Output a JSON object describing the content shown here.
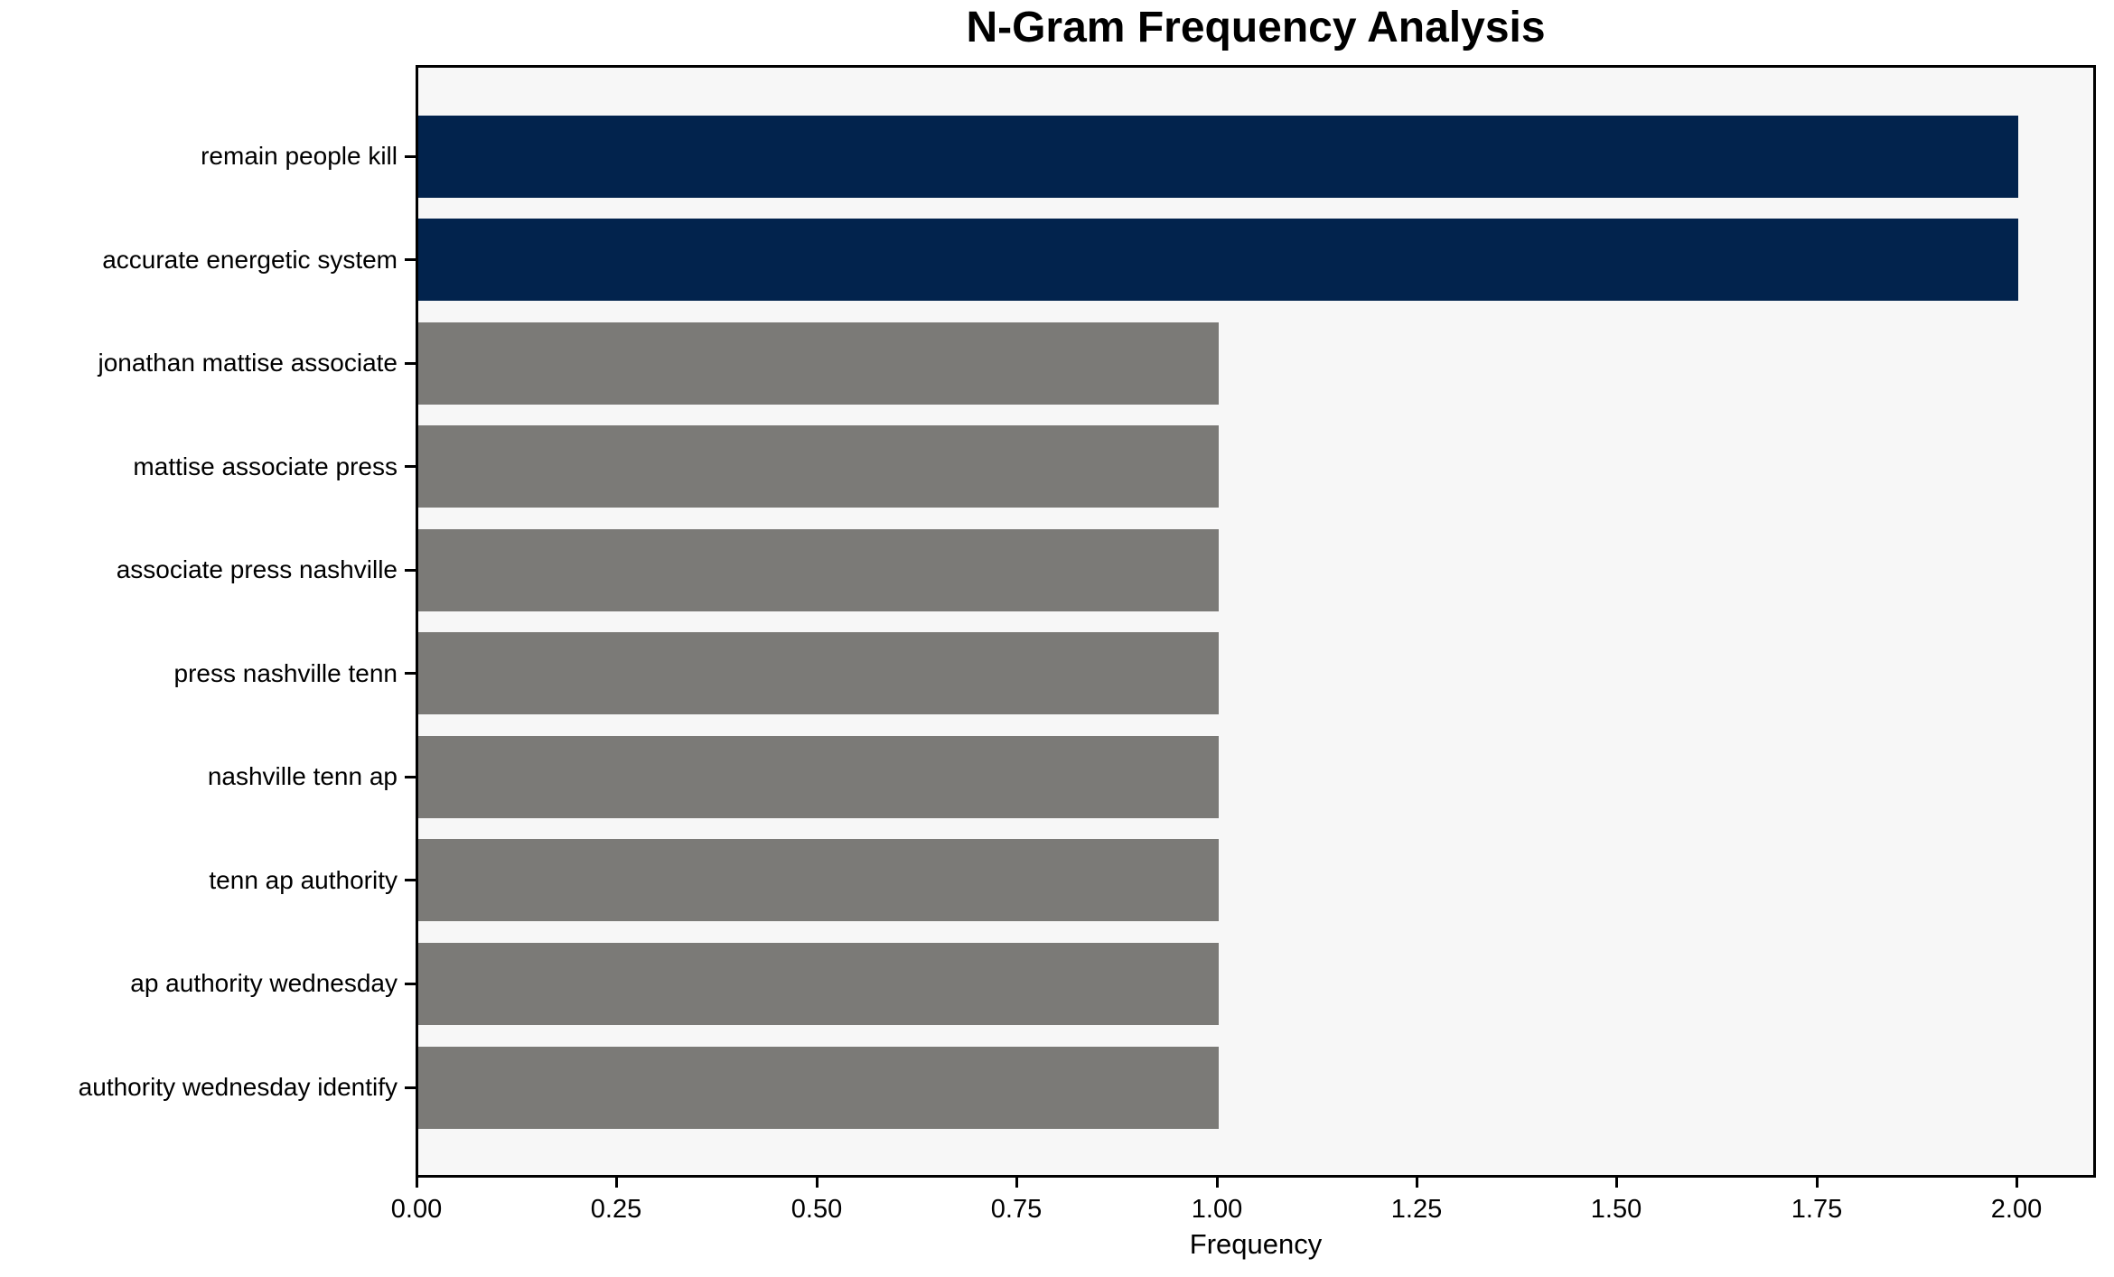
{
  "chart_data": {
    "type": "bar",
    "orientation": "horizontal",
    "title": "N-Gram Frequency Analysis",
    "xlabel": "Frequency",
    "ylabel": "",
    "categories": [
      "remain people kill",
      "accurate energetic system",
      "jonathan mattise associate",
      "mattise associate press",
      "associate press nashville",
      "press nashville tenn",
      "nashville tenn ap",
      "tenn ap authority",
      "ap authority wednesday",
      "authority wednesday identify"
    ],
    "values": [
      2,
      2,
      1,
      1,
      1,
      1,
      1,
      1,
      1,
      1
    ],
    "bar_colors": [
      "#02234d",
      "#02234d",
      "#7b7a77",
      "#7b7a77",
      "#7b7a77",
      "#7b7a77",
      "#7b7a77",
      "#7b7a77",
      "#7b7a77",
      "#7b7a77"
    ],
    "xlim": [
      0,
      2.1
    ],
    "xticks": [
      "0.00",
      "0.25",
      "0.50",
      "0.75",
      "1.00",
      "1.25",
      "1.50",
      "1.75",
      "2.00"
    ],
    "xtick_values": [
      0,
      0.25,
      0.5,
      0.75,
      1.0,
      1.25,
      1.5,
      1.75,
      2.0
    ],
    "grid": false,
    "legend": null
  },
  "colors": {
    "highlight_bar": "#02234d",
    "default_bar": "#7b7a77",
    "plot_background": "#f7f7f7",
    "figure_background": "#ffffff",
    "spine": "#000000",
    "text": "#000000"
  }
}
